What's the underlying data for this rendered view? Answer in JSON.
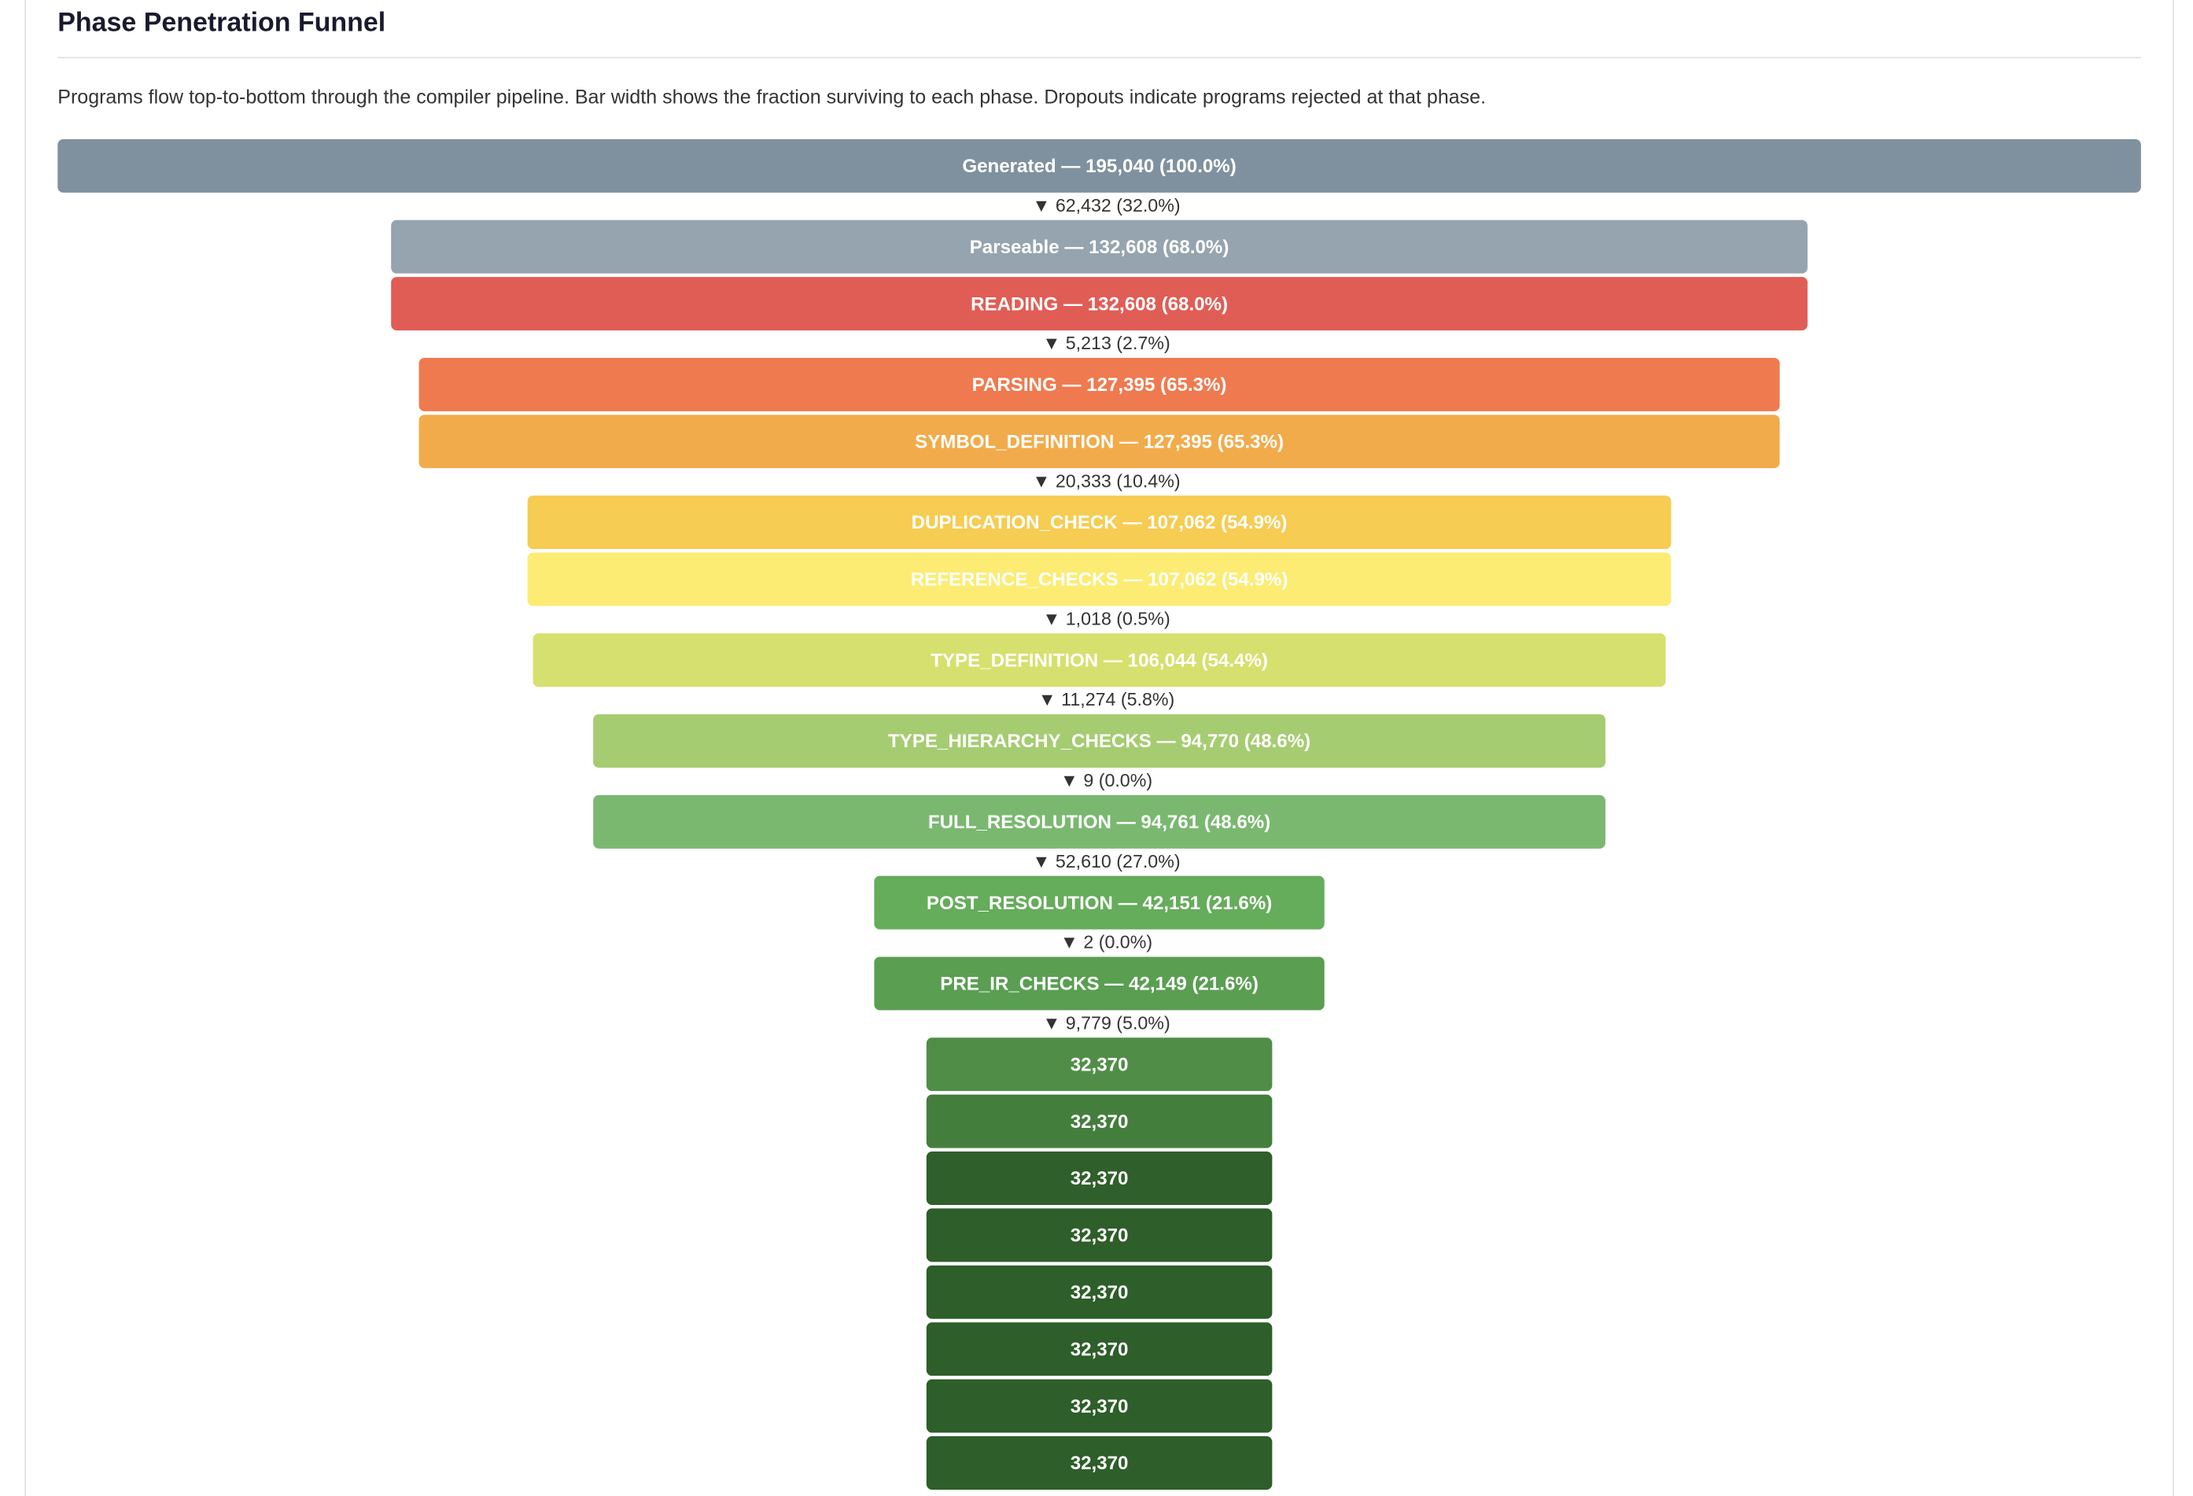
{
  "chart_data": {
    "type": "funnel",
    "title": "Phase Penetration Funnel",
    "subtitle": "Programs flow top-to-bottom through the compiler pipeline. Bar width shows the fraction surviving to each phase. Dropouts indicate programs rejected at that phase.",
    "stages": [
      {
        "label": "Generated — 195,040 (100.0%)",
        "value": 195040,
        "color": "#7f919e"
      },
      {
        "dropout": "▼ 62,432 (32.0%)",
        "label": "Parseable — 132,608 (68.0%)",
        "value": 132608,
        "color": "#95a4af"
      },
      {
        "label": "READING — 132,608 (68.0%)",
        "value": 132608,
        "color": "#e05d55"
      },
      {
        "dropout": "▼ 5,213 (2.7%)",
        "label": "PARSING — 127,395 (65.3%)",
        "value": 127395,
        "color": "#ef7a4f"
      },
      {
        "label": "SYMBOL_DEFINITION — 127,395 (65.3%)",
        "value": 127395,
        "color": "#f2ab4a"
      },
      {
        "dropout": "▼ 20,333 (10.4%)",
        "label": "DUPLICATION_CHECK — 107,062 (54.9%)",
        "value": 107062,
        "color": "#f6cc52"
      },
      {
        "label": "REFERENCE_CHECKS — 107,062 (54.9%)",
        "value": 107062,
        "color": "#fcec74"
      },
      {
        "dropout": "▼ 1,018 (0.5%)",
        "label": "TYPE_DEFINITION — 106,044 (54.4%)",
        "value": 106044,
        "color": "#d6e06e"
      },
      {
        "dropout": "▼ 11,274 (5.8%)",
        "label": "TYPE_HIERARCHY_CHECKS — 94,770 (48.6%)",
        "value": 94770,
        "color": "#a6cc72"
      },
      {
        "dropout": "▼ 9 (0.0%)",
        "label": "FULL_RESOLUTION — 94,761 (48.6%)",
        "value": 94761,
        "color": "#7ab870"
      },
      {
        "dropout": "▼ 52,610 (27.0%)",
        "label": "POST_RESOLUTION — 42,151 (21.6%)",
        "value": 42151,
        "color": "#65ac5b"
      },
      {
        "dropout": "▼ 2 (0.0%)",
        "label": "PRE_IR_CHECKS — 42,149 (21.6%)",
        "value": 42149,
        "color": "#5a9e52"
      },
      {
        "dropout": "▼ 9,779 (5.0%)",
        "label": "32,370",
        "value": 32370,
        "color": "#508e48"
      },
      {
        "label": "32,370",
        "value": 32370,
        "color": "#447e3d"
      },
      {
        "label": "32,370",
        "value": 32370,
        "color": "#2f5f2a"
      },
      {
        "label": "32,370",
        "value": 32370,
        "color": "#2e5e29"
      },
      {
        "label": "32,370",
        "value": 32370,
        "color": "#2e5e29"
      },
      {
        "label": "32,370",
        "value": 32370,
        "color": "#2e5e29"
      },
      {
        "label": "32,370",
        "value": 32370,
        "color": "#2e5e29"
      },
      {
        "label": "32,370",
        "value": 32370,
        "color": "#2e5e29"
      }
    ]
  }
}
